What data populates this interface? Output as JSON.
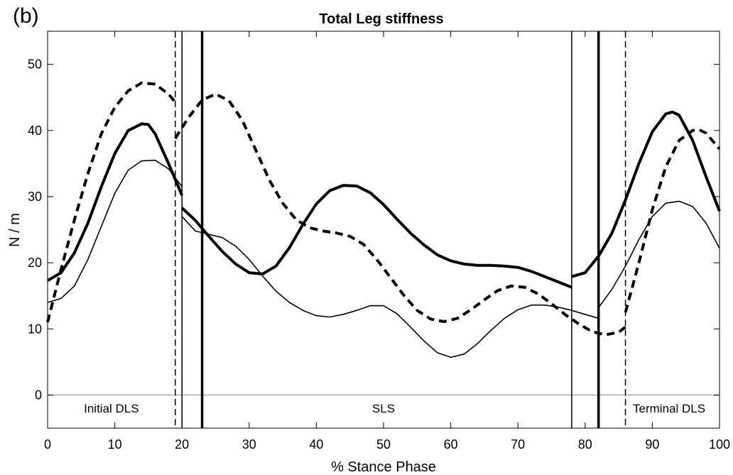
{
  "panel_label": "(b)",
  "chart_data": {
    "type": "line",
    "title": "Total Leg stiffness",
    "xlabel": "% Stance Phase",
    "ylabel": "N / m",
    "xlim": [
      0,
      100
    ],
    "ylim": [
      -5,
      55
    ],
    "xticks": [
      0,
      10,
      20,
      30,
      40,
      50,
      60,
      70,
      80,
      90,
      100
    ],
    "yticks": [
      0,
      10,
      20,
      30,
      40,
      50
    ],
    "grid": false,
    "zero_line": {
      "y": 0,
      "color": "#bfbfbf"
    },
    "phase_labels": [
      {
        "text": "Initial DLS",
        "x": 9.5,
        "y": -2
      },
      {
        "text": "SLS",
        "x": 50,
        "y": -2
      },
      {
        "text": "Terminal DLS",
        "x": 92.5,
        "y": -2
      }
    ],
    "vlines": [
      {
        "x": 19,
        "style": "dashed",
        "weight": "thin"
      },
      {
        "x": 20,
        "style": "solid",
        "weight": "thin"
      },
      {
        "x": 23,
        "style": "solid",
        "weight": "thick"
      },
      {
        "x": 78,
        "style": "solid",
        "weight": "thin"
      },
      {
        "x": 82,
        "style": "solid",
        "weight": "thick"
      },
      {
        "x": 86,
        "style": "dashed",
        "weight": "thin"
      }
    ],
    "series": [
      {
        "style": "solid",
        "weight": "thick",
        "segments": [
          {
            "x": [
              0,
              2,
              4,
              6,
              8,
              10,
              12,
              14,
              15,
              16,
              18,
              20
            ],
            "y": [
              17.3,
              18.5,
              21.5,
              26,
              31.5,
              36.5,
              40,
              41,
              40.9,
              39.5,
              35,
              30.2
            ]
          },
          {
            "x": [
              20,
              22,
              24,
              26,
              28,
              30,
              32,
              34,
              36,
              38,
              40,
              42,
              44,
              46,
              48,
              50,
              52,
              54,
              56,
              58,
              60,
              62,
              64,
              66,
              68,
              70,
              72,
              74,
              76,
              78
            ],
            "y": [
              28.3,
              26.4,
              24,
              21.7,
              19.8,
              18.5,
              18.3,
              19.5,
              22.3,
              25.8,
              28.9,
              30.9,
              31.7,
              31.6,
              30.6,
              28.8,
              26.6,
              24.5,
              22.7,
              21.2,
              20.3,
              19.8,
              19.6,
              19.6,
              19.5,
              19.3,
              18.7,
              17.9,
              17.1,
              16.3
            ]
          },
          {
            "x": [
              78,
              80,
              82,
              84,
              86,
              88,
              90,
              92,
              93,
              94,
              96,
              98,
              100
            ],
            "y": [
              17.9,
              18.5,
              21,
              24.5,
              29.5,
              35,
              39.8,
              42.5,
              42.8,
              42.3,
              38.5,
              33,
              27.8
            ]
          }
        ]
      },
      {
        "style": "dashed",
        "weight": "thick",
        "segments": [
          {
            "x": [
              0,
              2,
              4,
              6,
              8,
              10,
              12,
              14,
              16,
              18,
              19
            ],
            "y": [
              11,
              19,
              26.5,
              33.5,
              39.5,
              43.5,
              46,
              47.2,
              47,
              45.5,
              44.3
            ]
          },
          {
            "x": [
              19,
              21,
              23,
              25,
              27,
              29,
              31,
              33,
              35,
              37,
              39,
              41,
              43,
              45,
              47,
              49,
              51,
              53,
              55,
              57,
              59,
              61,
              63,
              65,
              67,
              69,
              71,
              73,
              75,
              77,
              79,
              81,
              83,
              85,
              86
            ],
            "y": [
              38.8,
              42,
              44.6,
              45.5,
              44.5,
              41.5,
              37,
              32.5,
              29,
              26.5,
              25.3,
              24.8,
              24.5,
              24,
              22.8,
              20.5,
              17.8,
              15.1,
              12.8,
              11.5,
              11.1,
              11.6,
              12.9,
              14.4,
              15.8,
              16.5,
              16.3,
              15.3,
              13.8,
              12.2,
              10.8,
              9.6,
              9.1,
              9.5,
              10.3
            ]
          },
          {
            "x": [
              86,
              88,
              90,
              92,
              94,
              96,
              97,
              98,
              100
            ],
            "y": [
              12.5,
              20,
              28,
              34.5,
              38.5,
              40,
              40.1,
              39.6,
              37.2
            ]
          }
        ]
      },
      {
        "style": "solid",
        "weight": "thin",
        "segments": [
          {
            "x": [
              0,
              2,
              4,
              6,
              8,
              10,
              12,
              14,
              16,
              18,
              20
            ],
            "y": [
              14,
              14.6,
              16.5,
              20.5,
              25.5,
              30.5,
              34,
              35.4,
              35.5,
              34.2,
              31.5
            ]
          },
          {
            "x": [
              20,
              22,
              24,
              26,
              28,
              30,
              32,
              34,
              36,
              38,
              40,
              42,
              44,
              46,
              48,
              50,
              52,
              54,
              56,
              58,
              60,
              62,
              64,
              66,
              68,
              70,
              72,
              74,
              76,
              78,
              80,
              82
            ],
            "y": [
              27,
              24.8,
              24.3,
              23.8,
              22.5,
              20.5,
              18,
              15.7,
              14,
              12.8,
              12,
              11.8,
              12.2,
              12.8,
              13.5,
              13.5,
              12.3,
              10.3,
              8.2,
              6.4,
              5.7,
              6.2,
              7.8,
              9.8,
              11.6,
              12.9,
              13.6,
              13.6,
              13.3,
              12.8,
              12.2,
              11.6
            ]
          },
          {
            "x": [
              82,
              84,
              86,
              88,
              90,
              92,
              94,
              96,
              98,
              100
            ],
            "y": [
              13.2,
              16,
              19.5,
              23.5,
              27,
              29,
              29.3,
              28.5,
              26,
              22.2
            ]
          }
        ]
      }
    ]
  }
}
